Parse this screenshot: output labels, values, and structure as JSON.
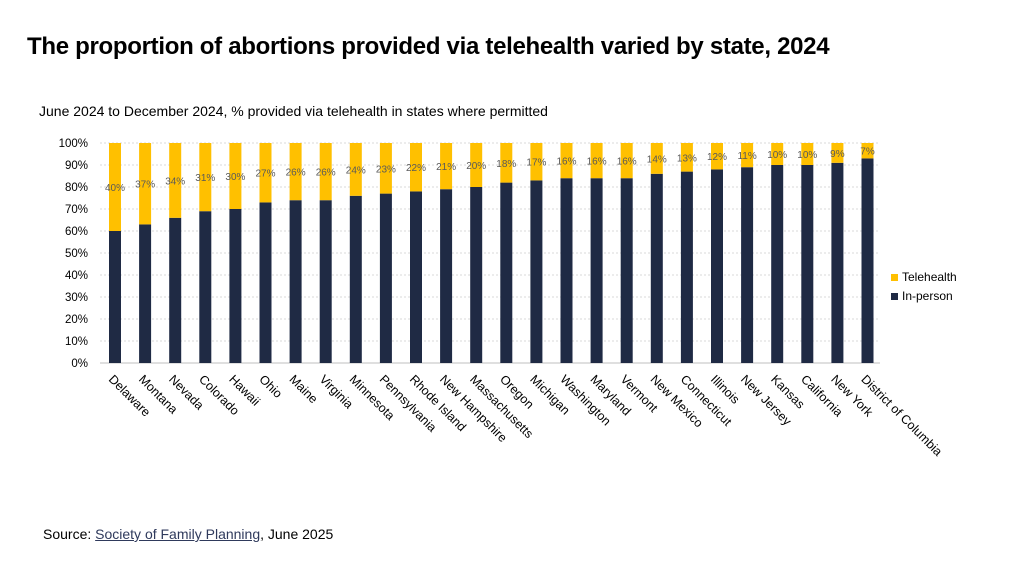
{
  "title": "The proportion of abortions provided via telehealth varied by state, 2024",
  "source": {
    "prefix": "Source: ",
    "link_text": "Society of Family Planning",
    "suffix": ", June 2025"
  },
  "chart_data": {
    "type": "bar",
    "stacked": true,
    "title": "June 2024 to December 2024, % provided via telehealth in states where permitted",
    "xlabel": "",
    "ylabel": "",
    "ylim": [
      0,
      100
    ],
    "yticks": [
      0,
      10,
      20,
      30,
      40,
      50,
      60,
      70,
      80,
      90,
      100
    ],
    "ytick_labels": [
      "0%",
      "10%",
      "20%",
      "30%",
      "40%",
      "50%",
      "60%",
      "70%",
      "80%",
      "90%",
      "100%"
    ],
    "grid": true,
    "legend_position": "right",
    "categories": [
      "Delaware",
      "Montana",
      "Nevada",
      "Colorado",
      "Hawaii",
      "Ohio",
      "Maine",
      "Virginia",
      "Minnesota",
      "Pennsylvania",
      "Rhode Island",
      "New Hampshire",
      "Massachusetts",
      "Oregon",
      "Michigan",
      "Washington",
      "Maryland",
      "Vermont",
      "New Mexico",
      "Connecticut",
      "Illinois",
      "New Jersey",
      "Kansas",
      "California",
      "New York",
      "District of Columbia"
    ],
    "series": [
      {
        "name": "In-person",
        "color": "#1f2a44",
        "values": [
          60,
          63,
          66,
          69,
          70,
          73,
          74,
          74,
          76,
          77,
          78,
          79,
          80,
          82,
          83,
          84,
          84,
          84,
          86,
          87,
          88,
          89,
          90,
          90,
          91,
          93
        ]
      },
      {
        "name": "Telehealth",
        "color": "#ffc000",
        "values": [
          40,
          37,
          34,
          31,
          30,
          27,
          26,
          26,
          24,
          23,
          22,
          21,
          20,
          18,
          17,
          16,
          16,
          16,
          14,
          13,
          12,
          11,
          10,
          10,
          9,
          7
        ]
      }
    ],
    "data_labels": [
      "40%",
      "37%",
      "34%",
      "31%",
      "30%",
      "27%",
      "26%",
      "26%",
      "24%",
      "23%",
      "22%",
      "21%",
      "20%",
      "18%",
      "17%",
      "16%",
      "16%",
      "16%",
      "14%",
      "13%",
      "12%",
      "11%",
      "10%",
      "10%",
      "9%",
      "7%"
    ],
    "legend": [
      "Telehealth",
      "In-person"
    ]
  }
}
